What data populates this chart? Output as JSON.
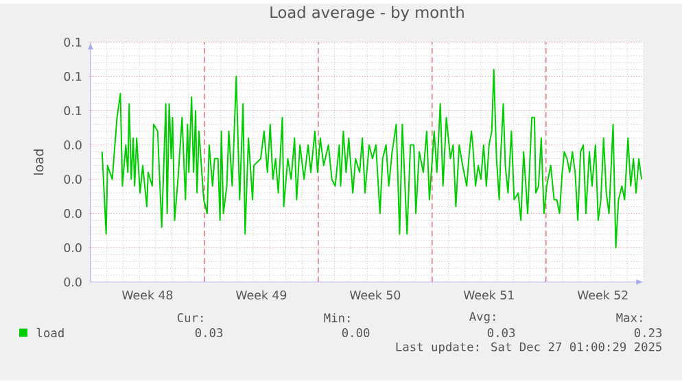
{
  "chart_data": {
    "type": "line",
    "title": "Load average - by month",
    "ylabel": "load",
    "legend": "bottom",
    "grid": true,
    "xlim": [
      "2025-11-24",
      "2025-12-28"
    ],
    "xticks": [
      {
        "value": "2025-11-27T12:00",
        "label": "Week 48"
      },
      {
        "value": "2025-12-04T12:00",
        "label": "Week 49"
      },
      {
        "value": "2025-12-11T12:00",
        "label": "Week 50"
      },
      {
        "value": "2025-12-18T12:00",
        "label": "Week 51"
      },
      {
        "value": "2025-12-25T12:00",
        "label": "Week 52"
      },
      {
        "value": "2025-12-01",
        "label": null
      },
      {
        "value": "2025-12-08",
        "label": null
      },
      {
        "value": "2025-12-15",
        "label": null
      },
      {
        "value": "2025-12-22",
        "label": null
      }
    ],
    "ylim": [
      0,
      0.07
    ],
    "yticks": [
      {
        "value": 0,
        "label": "0.0"
      },
      {
        "value": 0.01,
        "label": "0.0"
      },
      {
        "value": 0.02,
        "label": "0.0"
      },
      {
        "value": 0.03,
        "label": "0.0"
      },
      {
        "value": 0.04,
        "label": "0.0"
      },
      {
        "value": 0.05,
        "label": "0.1"
      },
      {
        "value": 0.06,
        "label": "0.1"
      },
      {
        "value": 0.07,
        "label": "0.1"
      }
    ],
    "annotations": [
      "Cur:",
      "Min:",
      "Avg:",
      "Max:",
      "0.03",
      "0.00",
      "0.03",
      "0.23",
      "Last update: Sat Dec 27 01:00:29 2025"
    ],
    "series": [
      {
        "name": "load",
        "color": "#00cc00",
        "x": [
          "2025-11-24T17:00",
          "2025-11-24T23:00",
          "2025-11-25T01:00",
          "2025-11-25T08:00",
          "2025-11-25T15:00",
          "2025-11-25T20:00",
          "2025-11-25T23:00",
          "2025-11-26T04:00",
          "2025-11-26T07:00",
          "2025-11-26T09:00",
          "2025-11-26T12:00",
          "2025-11-26T15:00",
          "2025-11-26T17:00",
          "2025-11-26T20:00",
          "2025-11-27T01:00",
          "2025-11-27T05:00",
          "2025-11-27T11:00",
          "2025-11-27T13:00",
          "2025-11-27T19:00",
          "2025-11-27T21:00",
          "2025-11-28T03:00",
          "2025-11-28T09:00",
          "2025-11-28T15:00",
          "2025-11-28T17:00",
          "2025-11-28T20:00",
          "2025-11-28T23:00",
          "2025-11-29T01:00",
          "2025-11-29T04:00",
          "2025-11-29T09:00",
          "2025-11-29T15:00",
          "2025-11-29T20:00",
          "2025-11-29T23:00",
          "2025-11-30T01:00",
          "2025-11-30T05:00",
          "2025-11-30T08:00",
          "2025-11-30T11:00",
          "2025-11-30T13:00",
          "2025-11-30T16:00",
          "2025-11-30T23:00",
          "2025-12-01T04:00",
          "2025-12-01T07:00",
          "2025-12-01T12:00",
          "2025-12-01T15:00",
          "2025-12-01T20:00",
          "2025-12-01T23:00",
          "2025-12-02T01:00",
          "2025-12-02T04:00",
          "2025-12-02T09:00",
          "2025-12-02T12:00",
          "2025-12-02T17:00",
          "2025-12-02T23:00",
          "2025-12-03T04:00",
          "2025-12-03T09:00",
          "2025-12-03T12:00",
          "2025-12-03T17:00",
          "2025-12-03T23:00",
          "2025-12-04T01:00",
          "2025-12-04T11:00",
          "2025-12-04T16:00",
          "2025-12-04T21:00",
          "2025-12-05T01:00",
          "2025-12-05T05:00",
          "2025-12-05T09:00",
          "2025-12-05T13:00",
          "2025-12-05T19:00",
          "2025-12-05T21:00",
          "2025-12-06T03:00",
          "2025-12-06T08:00",
          "2025-12-06T13:00",
          "2025-12-06T16:00",
          "2025-12-06T21:00",
          "2025-12-07T03:00",
          "2025-12-07T09:00",
          "2025-12-07T13:00",
          "2025-12-07T19:00",
          "2025-12-07T23:00",
          "2025-12-08T03:00",
          "2025-12-08T08:00",
          "2025-12-08T15:00",
          "2025-12-08T20:00",
          "2025-12-09T01:00",
          "2025-12-09T07:00",
          "2025-12-09T09:00",
          "2025-12-09T13:00",
          "2025-12-09T17:00",
          "2025-12-09T21:00",
          "2025-12-10T03:00",
          "2025-12-10T07:00",
          "2025-12-10T13:00",
          "2025-12-10T17:00",
          "2025-12-10T21:00",
          "2025-12-11T03:00",
          "2025-12-11T08:00",
          "2025-12-11T13:00",
          "2025-12-11T19:00",
          "2025-12-11T23:00",
          "2025-12-12T04:00",
          "2025-12-12T08:00",
          "2025-12-12T13:00",
          "2025-12-12T19:00",
          "2025-12-13T00:00",
          "2025-12-13T04:00",
          "2025-12-13T11:00",
          "2025-12-13T16:00",
          "2025-12-13T21:00",
          "2025-12-14T00:00",
          "2025-12-14T05:00",
          "2025-12-14T11:00",
          "2025-12-14T16:00",
          "2025-12-14T20:00",
          "2025-12-15T03:00",
          "2025-12-15T07:00",
          "2025-12-15T12:00",
          "2025-12-15T16:00",
          "2025-12-15T21:00",
          "2025-12-16T03:00",
          "2025-12-16T07:00",
          "2025-12-16T11:00",
          "2025-12-16T16:00",
          "2025-12-16T21:00",
          "2025-12-17T03:00",
          "2025-12-17T07:00",
          "2025-12-17T10:00",
          "2025-12-17T12:00",
          "2025-12-17T16:00",
          "2025-12-17T20:00",
          "2025-12-18T00:00",
          "2025-12-18T04:00",
          "2025-12-18T08:00",
          "2025-12-18T12:00",
          "2025-12-18T16:00",
          "2025-12-18T19:00",
          "2025-12-18T23:00",
          "2025-12-19T03:00",
          "2025-12-19T05:00",
          "2025-12-19T09:00",
          "2025-12-19T12:00",
          "2025-12-19T16:00",
          "2025-12-19T21:00",
          "2025-12-20T01:00",
          "2025-12-20T07:00",
          "2025-12-20T11:00",
          "2025-12-20T15:00",
          "2025-12-20T19:00",
          "2025-12-20T21:00",
          "2025-12-21T03:00",
          "2025-12-21T07:00",
          "2025-12-21T09:00",
          "2025-12-21T13:00",
          "2025-12-21T17:00",
          "2025-12-21T21:00",
          "2025-12-22T01:00",
          "2025-12-22T07:00",
          "2025-12-22T12:00",
          "2025-12-22T16:00",
          "2025-12-22T20:00",
          "2025-12-23T00:00",
          "2025-12-23T03:00",
          "2025-12-23T07:00",
          "2025-12-23T11:00",
          "2025-12-23T15:00",
          "2025-12-23T19:00",
          "2025-12-23T23:00",
          "2025-12-24T03:00",
          "2025-12-24T07:00",
          "2025-12-24T11:00",
          "2025-12-24T16:00",
          "2025-12-24T20:00",
          "2025-12-25T01:00",
          "2025-12-25T05:00",
          "2025-12-25T09:00",
          "2025-12-25T13:00",
          "2025-12-25T17:00",
          "2025-12-25T21:00",
          "2025-12-26T03:00",
          "2025-12-26T07:00",
          "2025-12-26T11:00",
          "2025-12-26T16:00",
          "2025-12-26T20:00",
          "2025-12-27T01:00",
          "2025-12-27T05:00",
          "2025-12-27T09:00",
          "2025-12-27T13:00",
          "2025-12-27T17:00",
          "2025-12-27T21:00"
        ],
        "values": [
          0.038,
          0.014,
          0.034,
          0.03,
          0.048,
          0.055,
          0.028,
          0.04,
          0.032,
          0.052,
          0.03,
          0.042,
          0.028,
          0.042,
          0.026,
          0.034,
          0.022,
          0.032,
          0.028,
          0.046,
          0.044,
          0.016,
          0.052,
          0.02,
          0.052,
          0.036,
          0.048,
          0.018,
          0.03,
          0.048,
          0.024,
          0.046,
          0.032,
          0.054,
          0.032,
          0.05,
          0.026,
          0.044,
          0.024,
          0.02,
          0.04,
          0.028,
          0.036,
          0.036,
          0.018,
          0.044,
          0.02,
          0.028,
          0.044,
          0.028,
          0.06,
          0.024,
          0.052,
          0.014,
          0.042,
          0.024,
          0.034,
          0.036,
          0.044,
          0.032,
          0.046,
          0.03,
          0.036,
          0.026,
          0.048,
          0.022,
          0.036,
          0.03,
          0.042,
          0.024,
          0.04,
          0.03,
          0.04,
          0.032,
          0.044,
          0.032,
          0.042,
          0.034,
          0.04,
          0.03,
          0.028,
          0.04,
          0.028,
          0.044,
          0.032,
          0.042,
          0.026,
          0.036,
          0.032,
          0.042,
          0.026,
          0.04,
          0.036,
          0.04,
          0.02,
          0.036,
          0.04,
          0.028,
          0.038,
          0.046,
          0.014,
          0.046,
          0.014,
          0.04,
          0.04,
          0.02,
          0.038,
          0.032,
          0.044,
          0.024,
          0.044,
          0.032,
          0.052,
          0.028,
          0.048,
          0.036,
          0.04,
          0.022,
          0.04,
          0.034,
          0.028,
          0.038,
          0.044,
          0.04,
          0.028,
          0.034,
          0.03,
          0.04,
          0.028,
          0.04,
          0.044,
          0.062,
          0.036,
          0.024,
          0.036,
          0.052,
          0.034,
          0.026,
          0.044,
          0.024,
          0.026,
          0.018,
          0.038,
          0.026,
          0.02,
          0.048,
          0.048,
          0.026,
          0.028,
          0.042,
          0.02,
          0.028,
          0.034,
          0.024,
          0.024,
          0.02,
          0.032,
          0.038,
          0.036,
          0.032,
          0.038,
          0.032,
          0.018,
          0.038,
          0.04,
          0.02,
          0.038,
          0.028,
          0.04,
          0.018,
          0.024,
          0.042,
          0.026,
          0.02,
          0.046,
          0.01,
          0.024,
          0.028,
          0.024,
          0.042,
          0.028,
          0.036,
          0.026,
          0.036,
          0.03
        ]
      }
    ]
  }
}
